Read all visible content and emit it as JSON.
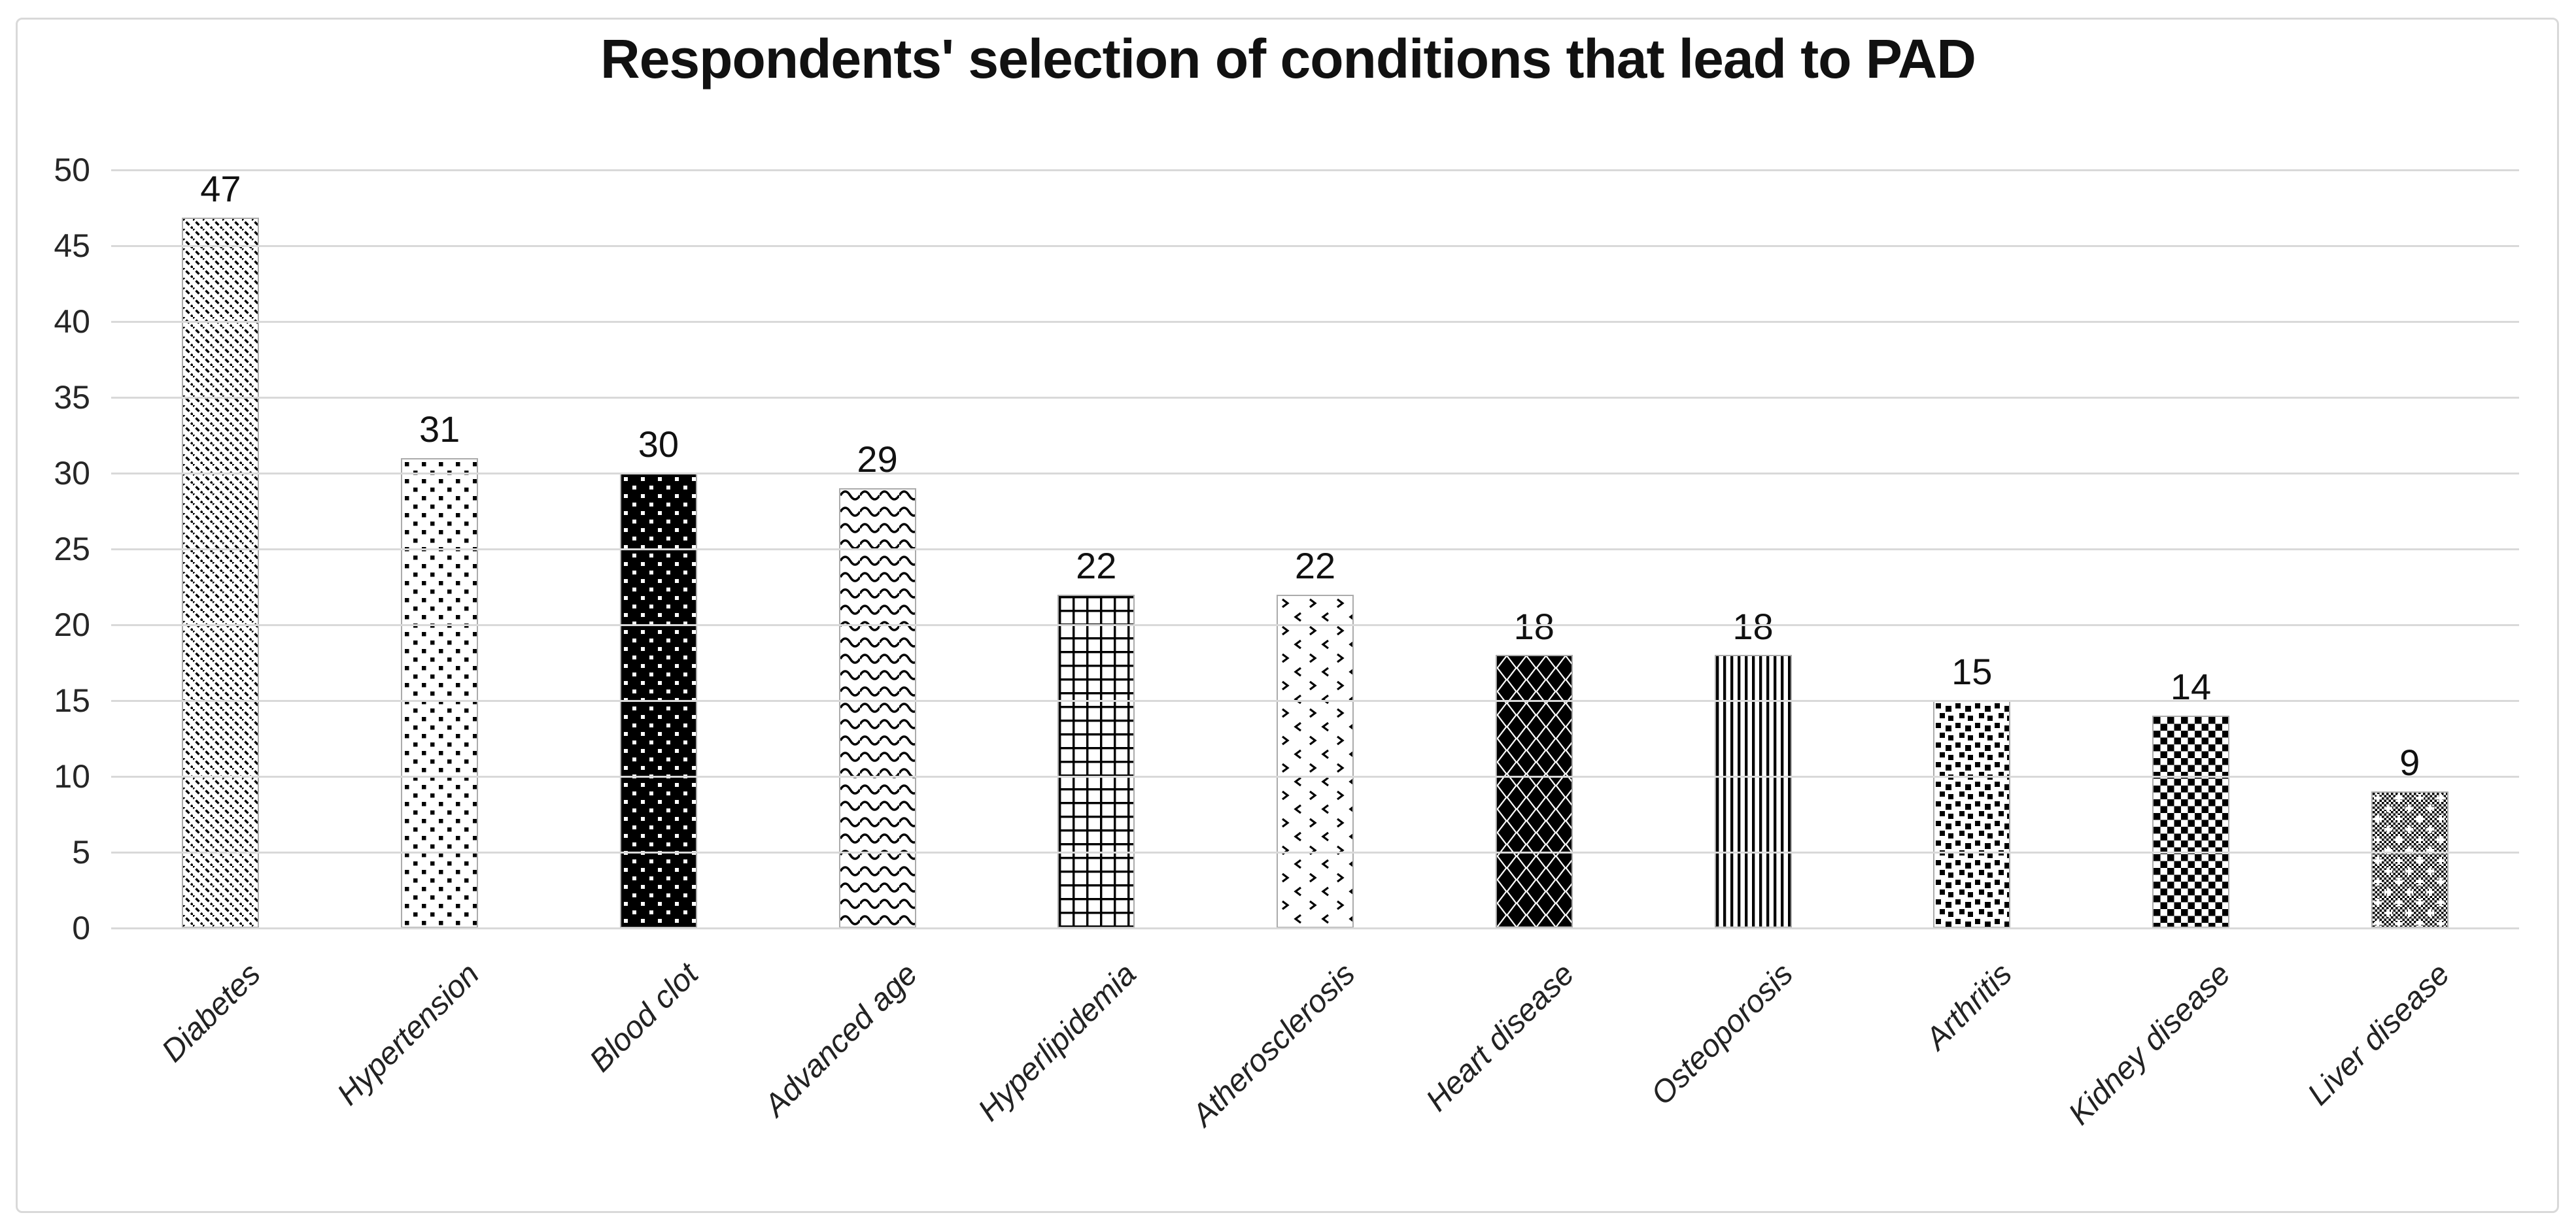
{
  "chart": {
    "title": "Respondents' selection of conditions that lead to PAD"
  },
  "chart_data": {
    "type": "bar",
    "title": "Respondents' selection of conditions that lead to PAD",
    "categories": [
      "Diabetes",
      "Hypertension",
      "Blood clot",
      "Advanced age",
      "Hyperlipidemia",
      "Atherosclerosis",
      "Heart disease",
      "Osteoporosis",
      "Arthritis",
      "Kidney disease",
      "Liver disease"
    ],
    "values": [
      47,
      31,
      30,
      29,
      22,
      22,
      18,
      18,
      15,
      14,
      9
    ],
    "value_labels_shown": true,
    "xlabel": "",
    "ylabel": "",
    "ylim": [
      0,
      50
    ],
    "yticks": [
      0,
      5,
      10,
      15,
      20,
      25,
      30,
      35,
      40,
      45,
      50
    ],
    "grid": "horizontal",
    "legend": "none",
    "x_label_rotation_degrees": 45,
    "bar_patterns": [
      "diagonal-dashes",
      "square-dots",
      "white-dots-on-black",
      "waves",
      "grid",
      "divot-chevrons",
      "black-diamonds",
      "vertical-lines",
      "confetti-squares",
      "checkerboard",
      "fine-check-with-plus"
    ],
    "colors": {
      "background": "#ffffff",
      "bar_fill": "#ffffff",
      "bar_ink": "#000000",
      "bar_border": "#ababab",
      "gridline": "#d9d9d9",
      "frame_border": "#d9d9d9",
      "text": "#111111"
    }
  }
}
